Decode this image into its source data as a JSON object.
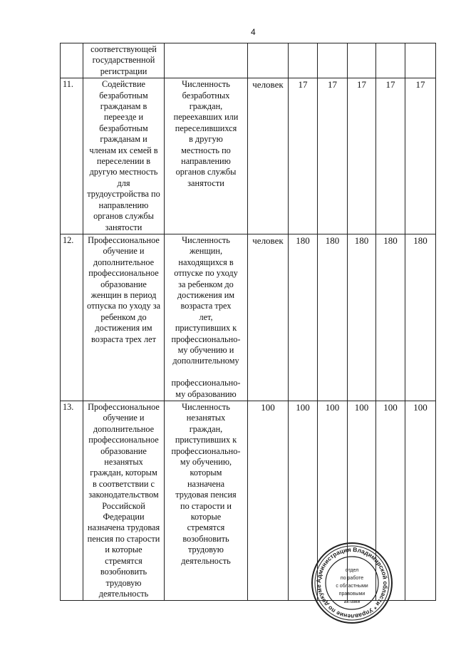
{
  "page_number": "4",
  "rows": [
    {
      "num": "",
      "name": "соответствующей\nгосударственной\nрегистрации",
      "indicator": "",
      "unit": "",
      "values": [
        "",
        "",
        "",
        "",
        ""
      ]
    },
    {
      "num": "11.",
      "name": "Содействие\nбезработным\nгражданам в\nпереезде и\nбезработным\nгражданам и\nчленам их семей в\nпереселении в\nдругую местность\nдля\nтрудоустройства по\nнаправлению\nорганов службы\nзанятости",
      "indicator": "Численность\nбезработных\nграждан,\nпереехавших или\nпереселившихся\nв другую\nместность по\nнаправлению\nорганов службы\nзанятости",
      "unit": "человек",
      "values": [
        "17",
        "17",
        "17",
        "17",
        "17"
      ]
    },
    {
      "num": "12.",
      "name": "Профессиональное\nобучение и\nдополнительное\nпрофессиональное\nобразование\nженщин в период\nотпуска по уходу за\nребенком до\nдостижения им\nвозраста трех лет",
      "indicator": "Численность\nженщин,\nнаходящихся в\nотпуске по уходу\nза ребенком до\nдостижения им\nвозраста трех\nлет,\nприступивших к\nпрофессионально-\nму обучению и\nдополнительному\n\nпрофессионально-\nму образованию",
      "unit": "человек",
      "values": [
        "180",
        "180",
        "180",
        "180",
        "180"
      ]
    },
    {
      "num": "13.",
      "name": "Профессиональное\nобучение и\nдополнительное\nпрофессиональное\nобразование\nнезанятых\nграждан, которым\nв соответствии с\nзаконодательством\nРоссийской\nФедерации\nназначена трудовая\nпенсия по старости\nи которые\nстремятся\nвозобновить\nтрудовую\nдеятельность",
      "indicator": "Численность\nнезанятых\nграждан,\nприступивших к\nпрофессионально-\nму обучению,\nкоторым\nназначена\nтрудовая пенсия\nпо старости и\nкоторые\nстремятся\nвозобновить\nтрудовую\nдеятельность",
      "unit": "100",
      "values": [
        "100",
        "100",
        "100",
        "100",
        "100"
      ]
    }
  ],
  "stamp": {
    "ring_text": "Администрация Владимирской области Управление по документообороту",
    "center_text": "отдел по работе с областными правовыми актами",
    "color": "#222222"
  }
}
